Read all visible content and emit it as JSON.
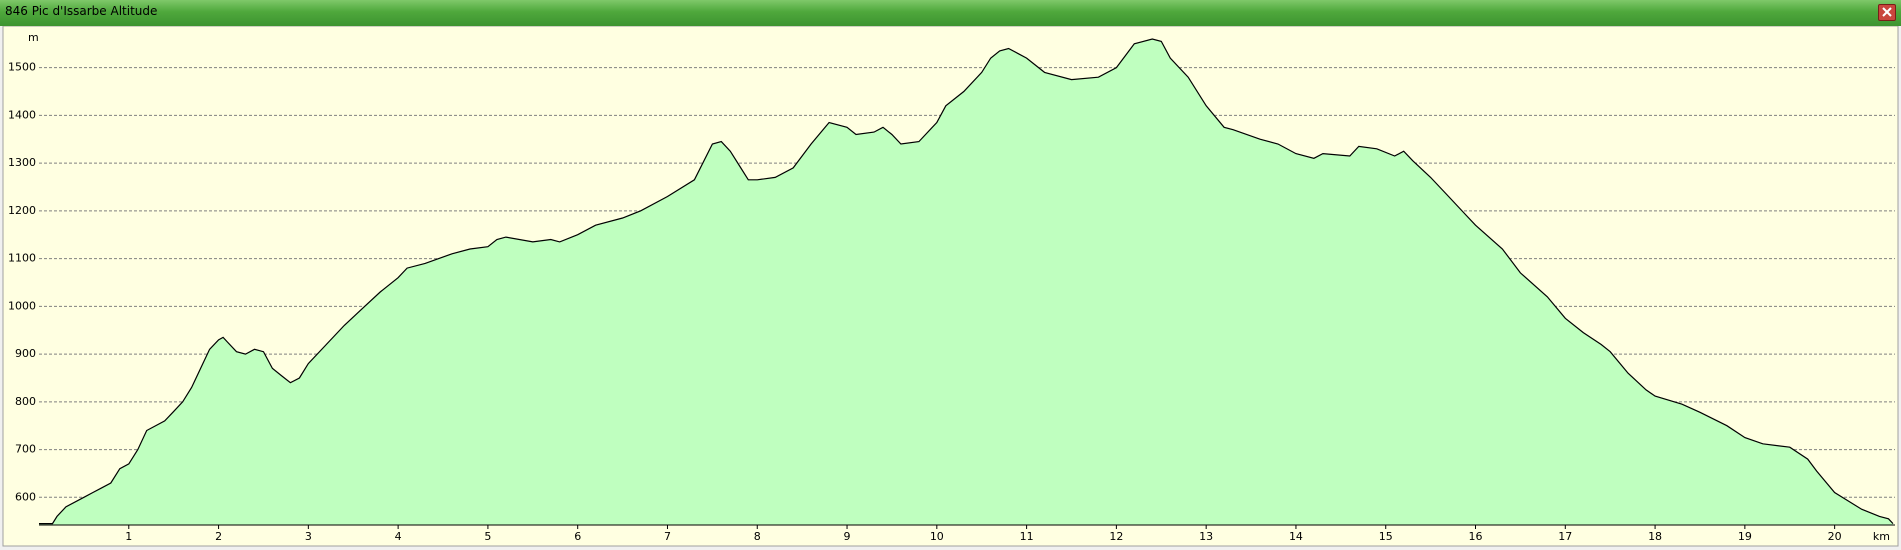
{
  "chart_data": {
    "type": "area",
    "title": "846 Pic d'Issarbe Altitude",
    "y_unit": "m",
    "x_unit": "km",
    "x": [
      0,
      0.15,
      0.2,
      0.3,
      0.5,
      0.6,
      0.7,
      0.8,
      0.9,
      1.0,
      1.1,
      1.2,
      1.4,
      1.5,
      1.6,
      1.7,
      1.8,
      1.9,
      2.0,
      2.05,
      2.1,
      2.2,
      2.3,
      2.4,
      2.5,
      2.6,
      2.7,
      2.8,
      2.9,
      3.0,
      3.2,
      3.4,
      3.6,
      3.8,
      4.0,
      4.1,
      4.3,
      4.6,
      4.8,
      5.0,
      5.1,
      5.2,
      5.5,
      5.7,
      5.8,
      6.0,
      6.2,
      6.5,
      6.7,
      7.0,
      7.3,
      7.5,
      7.6,
      7.7,
      7.8,
      7.9,
      8.0,
      8.2,
      8.4,
      8.6,
      8.8,
      9.0,
      9.1,
      9.3,
      9.4,
      9.5,
      9.6,
      9.8,
      10.0,
      10.1,
      10.3,
      10.5,
      10.6,
      10.7,
      10.8,
      10.9,
      11.0,
      11.2,
      11.5,
      11.8,
      12.0,
      12.2,
      12.4,
      12.5,
      12.6,
      12.8,
      13.0,
      13.2,
      13.3,
      13.6,
      13.8,
      14.0,
      14.2,
      14.3,
      14.6,
      14.7,
      14.9,
      15.1,
      15.2,
      15.3,
      15.5,
      15.7,
      15.9,
      16.0,
      16.3,
      16.5,
      16.8,
      17.0,
      17.2,
      17.4,
      17.5,
      17.7,
      17.9,
      18.0,
      18.3,
      18.5,
      18.8,
      19.0,
      19.2,
      19.5,
      19.7,
      19.8,
      20.0,
      20.3,
      20.5,
      20.6,
      20.65
    ],
    "values": [
      545,
      545,
      560,
      580,
      600,
      610,
      620,
      630,
      660,
      670,
      700,
      740,
      760,
      780,
      800,
      830,
      870,
      910,
      930,
      935,
      925,
      905,
      900,
      910,
      905,
      870,
      855,
      840,
      850,
      880,
      920,
      960,
      995,
      1030,
      1060,
      1080,
      1090,
      1110,
      1120,
      1125,
      1140,
      1145,
      1135,
      1140,
      1135,
      1150,
      1170,
      1185,
      1200,
      1230,
      1265,
      1340,
      1345,
      1325,
      1295,
      1265,
      1265,
      1270,
      1290,
      1340,
      1385,
      1375,
      1360,
      1365,
      1375,
      1360,
      1340,
      1345,
      1385,
      1420,
      1450,
      1490,
      1520,
      1535,
      1540,
      1530,
      1520,
      1490,
      1475,
      1480,
      1500,
      1550,
      1560,
      1555,
      1520,
      1480,
      1420,
      1375,
      1370,
      1350,
      1340,
      1320,
      1310,
      1320,
      1315,
      1335,
      1330,
      1315,
      1325,
      1305,
      1270,
      1230,
      1190,
      1170,
      1120,
      1070,
      1020,
      975,
      945,
      920,
      905,
      860,
      825,
      812,
      795,
      778,
      750,
      725,
      712,
      705,
      680,
      655,
      610,
      575,
      560,
      555,
      545
    ],
    "color": "#bfffbf",
    "line_color": "#000000",
    "xlim": [
      0,
      20.65
    ],
    "ylim": [
      542,
      1583
    ],
    "xticks": [
      1,
      2,
      3,
      4,
      5,
      6,
      7,
      8,
      9,
      10,
      11,
      12,
      13,
      14,
      15,
      16,
      17,
      18,
      19,
      20
    ],
    "yticks": [
      600,
      700,
      800,
      900,
      1000,
      1100,
      1200,
      1300,
      1400,
      1500
    ],
    "grid": true
  }
}
